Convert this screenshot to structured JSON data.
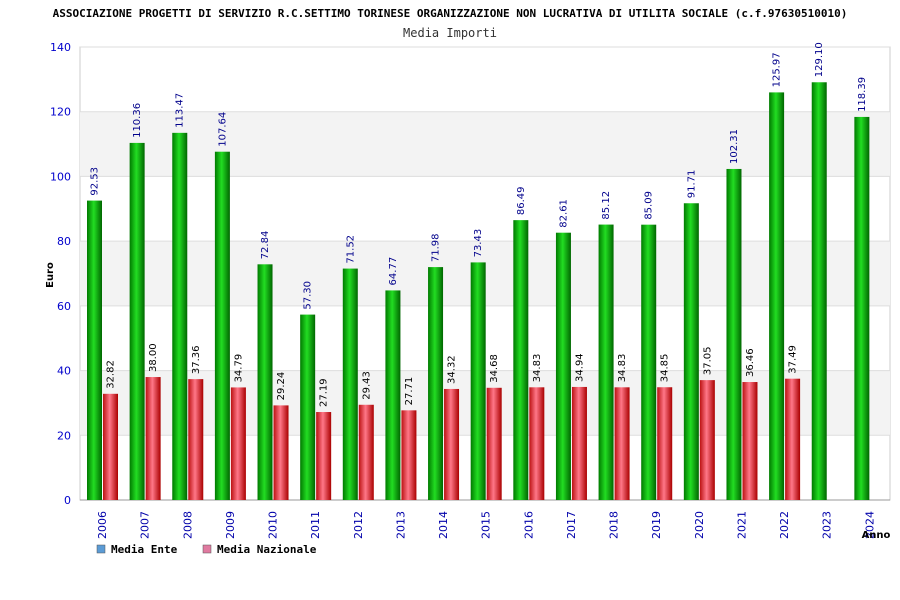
{
  "header": {
    "title": "ASSOCIAZIONE PROGETTI DI SERVIZIO R.C.SETTIMO TORINESE ORGANIZZAZIONE NON LUCRATIVA DI UTILITA SOCIALE (c.f.97630510010)",
    "subtitle": "Media Importi"
  },
  "legend": {
    "items": [
      {
        "label": "Media Ente",
        "color": "#5b9bd5"
      },
      {
        "label": "Media Nazionale",
        "color": "#e07aa0"
      }
    ]
  },
  "chart_data": {
    "type": "bar",
    "title": "Media Importi",
    "xlabel": "Anno",
    "ylabel": "Euro",
    "ylim": [
      0,
      140
    ],
    "yticks": [
      0,
      20,
      40,
      60,
      80,
      100,
      120,
      140
    ],
    "grid": true,
    "legend_position": "bottom-left",
    "categories": [
      "2006",
      "2007",
      "2008",
      "2009",
      "2010",
      "2011",
      "2012",
      "2013",
      "2014",
      "2015",
      "2016",
      "2017",
      "2018",
      "2019",
      "2020",
      "2021",
      "2022",
      "2023",
      "2024"
    ],
    "series": [
      {
        "name": "Media Ente",
        "color": "#00aa00",
        "values": [
          92.53,
          110.36,
          113.47,
          107.64,
          72.84,
          57.3,
          71.52,
          64.77,
          71.98,
          73.43,
          86.49,
          82.61,
          85.12,
          85.09,
          91.71,
          102.31,
          125.97,
          129.1,
          118.39
        ],
        "labels": [
          "92.53",
          "110.36",
          "113.47",
          "107.64",
          "72.84",
          "57.30",
          "71.52",
          "64.77",
          "71.98",
          "73.43",
          "86.49",
          "82.61",
          "85.12",
          "85.09",
          "91.71",
          "102.31",
          "125.97",
          "129.10",
          "118.39"
        ]
      },
      {
        "name": "Media Nazionale",
        "color": "#dd2222",
        "values": [
          32.82,
          38.0,
          37.36,
          34.79,
          29.24,
          27.19,
          29.43,
          27.71,
          34.32,
          34.68,
          34.83,
          34.94,
          34.83,
          34.85,
          37.05,
          36.46,
          37.49,
          null,
          null
        ],
        "labels": [
          "32.82",
          "38.00",
          "37.36",
          "34.79",
          "29.24",
          "27.19",
          "29.43",
          "27.71",
          "34.32",
          "34.68",
          "34.83",
          "34.94",
          "34.83",
          "34.85",
          "37.05",
          "36.46",
          "37.49",
          null,
          null
        ]
      }
    ]
  }
}
